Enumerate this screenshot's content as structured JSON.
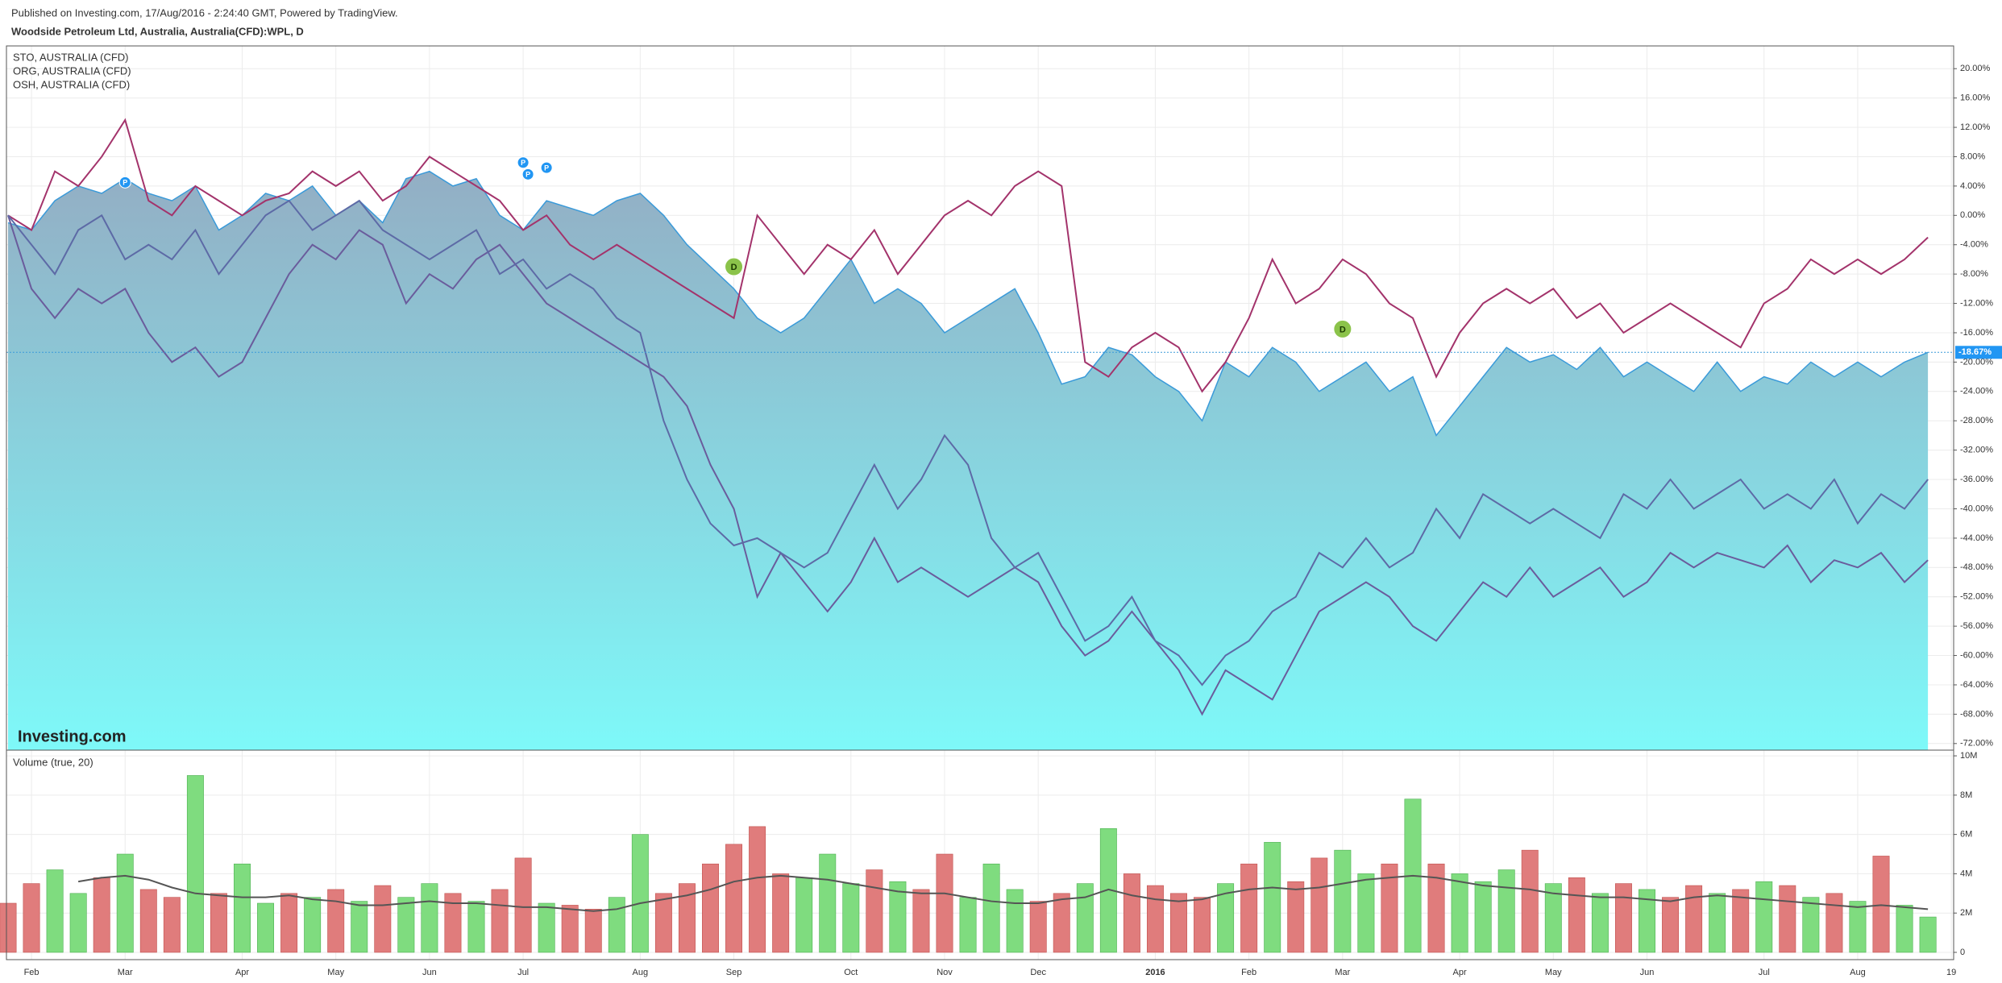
{
  "header": "Published on Investing.com, 17/Aug/2016 - 2:24:40 GMT, Powered by TradingView.",
  "chart_data": [
    {
      "type": "area",
      "title": "Woodside Petroleum Ltd, Australia, Australia(CFD):WPL, D",
      "watermark": "Investing.com",
      "categories": [
        null,
        "Feb",
        null,
        null,
        null,
        "Mar",
        null,
        null,
        null,
        null,
        "Apr",
        null,
        null,
        null,
        "May",
        null,
        null,
        null,
        "Jun",
        null,
        null,
        null,
        "Jul",
        null,
        null,
        null,
        null,
        "Aug",
        null,
        null,
        null,
        "Sep",
        null,
        null,
        null,
        null,
        "Oct",
        null,
        null,
        null,
        "Nov",
        null,
        null,
        null,
        "Dec",
        null,
        null,
        null,
        null,
        "2016",
        null,
        null,
        null,
        "Feb",
        null,
        null,
        null,
        "Mar",
        null,
        null,
        null,
        null,
        "Apr",
        null,
        null,
        null,
        "May",
        null,
        null,
        null,
        "Jun",
        null,
        null,
        null,
        null,
        "Jul",
        null,
        null,
        null,
        "Aug",
        null,
        null,
        null,
        "19"
      ],
      "values": [
        -1,
        -2,
        2,
        4,
        3,
        5,
        3,
        2,
        4,
        -2,
        0,
        3,
        2,
        4,
        0,
        2,
        -1,
        5,
        6,
        4,
        5,
        0,
        -2,
        2,
        1,
        0,
        2,
        3,
        0,
        -4,
        -7,
        -10,
        -14,
        -16,
        -14,
        -10,
        -6,
        -12,
        -10,
        -12,
        -16,
        -14,
        -12,
        -10,
        -16,
        -23,
        -22,
        -18,
        -19,
        -22,
        -24,
        -28,
        -20,
        -22,
        -18,
        -20,
        -24,
        -22,
        -20,
        -24,
        -22,
        -30,
        -26,
        -22,
        -18,
        -20,
        -19,
        -21,
        -18,
        -22,
        -20,
        -22,
        -24,
        -20,
        -24,
        -22,
        -23,
        -20,
        -22,
        -20,
        -22,
        -20,
        -18.67,
        null
      ],
      "color": "#3a9ad9",
      "series": [
        {
          "name": "STO, AUSTRALIA (CFD)",
          "color": "#6a5c9c",
          "values": [
            0,
            -10,
            -14,
            -10,
            -12,
            -10,
            -16,
            -20,
            -18,
            -22,
            -20,
            -14,
            -8,
            -4,
            -6,
            -2,
            -4,
            -12,
            -8,
            -10,
            -6,
            -4,
            -8,
            -12,
            -14,
            -16,
            -18,
            -20,
            -22,
            -26,
            -34,
            -40,
            -52,
            -46,
            -50,
            -54,
            -50,
            -44,
            -50,
            -48,
            -50,
            -52,
            -50,
            -48,
            -50,
            -56,
            -60,
            -58,
            -54,
            -58,
            -62,
            -68,
            -62,
            -64,
            -66,
            -60,
            -54,
            -52,
            -50,
            -52,
            -56,
            -58,
            -54,
            -50,
            -52,
            -48,
            -52,
            -50,
            -48,
            -52,
            -50,
            -46,
            -48,
            -46,
            -47,
            -48,
            -45,
            -50,
            -47,
            -48,
            -46,
            -50,
            -47,
            null
          ]
        },
        {
          "name": "ORG, AUSTRALIA (CFD)",
          "color": "#a3336b",
          "values": [
            0,
            -2,
            6,
            4,
            8,
            13,
            2,
            0,
            4,
            2,
            0,
            2,
            3,
            6,
            4,
            6,
            2,
            4,
            8,
            6,
            4,
            2,
            -2,
            0,
            -4,
            -6,
            -4,
            -6,
            -8,
            -10,
            -12,
            -14,
            0,
            -4,
            -8,
            -4,
            -6,
            -2,
            -8,
            -4,
            0,
            2,
            0,
            4,
            6,
            4,
            -20,
            -22,
            -18,
            -16,
            -18,
            -24,
            -20,
            -14,
            -6,
            -12,
            -10,
            -6,
            -8,
            -12,
            -14,
            -22,
            -16,
            -12,
            -10,
            -12,
            -10,
            -14,
            -12,
            -16,
            -14,
            -12,
            -14,
            -16,
            -18,
            -12,
            -10,
            -6,
            -8,
            -6,
            -8,
            -6,
            -3,
            null
          ]
        },
        {
          "name": "OSH, AUSTRALIA (CFD)",
          "color": "#5d6aa6",
          "values": [
            0,
            -4,
            -8,
            -2,
            0,
            -6,
            -4,
            -6,
            -2,
            -8,
            -4,
            0,
            2,
            -2,
            0,
            2,
            -2,
            -4,
            -6,
            -4,
            -2,
            -8,
            -6,
            -10,
            -8,
            -10,
            -14,
            -16,
            -28,
            -36,
            -42,
            -45,
            -44,
            -46,
            -48,
            -46,
            -40,
            -34,
            -40,
            -36,
            -30,
            -34,
            -44,
            -48,
            -46,
            -52,
            -58,
            -56,
            -52,
            -58,
            -60,
            -64,
            -60,
            -58,
            -54,
            -52,
            -46,
            -48,
            -44,
            -48,
            -46,
            -40,
            -44,
            -38,
            -40,
            -42,
            -40,
            -42,
            -44,
            -38,
            -40,
            -36,
            -40,
            -38,
            -36,
            -40,
            -38,
            -40,
            -36,
            -42,
            -38,
            -40,
            -36,
            null
          ]
        }
      ],
      "ylim": [
        -72.9,
        23.1
      ],
      "yticks": [
        {
          "value": 20,
          "label": "20.00%"
        },
        {
          "value": 16,
          "label": "16.00%"
        },
        {
          "value": 12,
          "label": "12.00%"
        },
        {
          "value": 8,
          "label": "8.00%"
        },
        {
          "value": 4,
          "label": "4.00%"
        },
        {
          "value": 0,
          "label": "0.00%"
        },
        {
          "value": -4,
          "label": "-4.00%"
        },
        {
          "value": -8,
          "label": "-8.00%"
        },
        {
          "value": -12,
          "label": "-12.00%"
        },
        {
          "value": -16,
          "label": "-16.00%"
        },
        {
          "value": -20,
          "label": "-20.00%"
        },
        {
          "value": -24,
          "label": "-24.00%"
        },
        {
          "value": -28,
          "label": "-28.00%"
        },
        {
          "value": -32,
          "label": "-32.00%"
        },
        {
          "value": -36,
          "label": "-36.00%"
        },
        {
          "value": -40,
          "label": "-40.00%"
        },
        {
          "value": -44,
          "label": "-44.00%"
        },
        {
          "value": -48,
          "label": "-48.00%"
        },
        {
          "value": -52,
          "label": "-52.00%"
        },
        {
          "value": -56,
          "label": "-56.00%"
        },
        {
          "value": -60,
          "label": "-60.00%"
        },
        {
          "value": -64,
          "label": "-64.00%"
        },
        {
          "value": -68,
          "label": "-68.00%"
        },
        {
          "value": -72,
          "label": "-72.00%"
        }
      ],
      "grid": true,
      "last_value": {
        "value": -18.67,
        "label": "-18.67%"
      },
      "events": [
        {
          "label": "P",
          "index": 5,
          "value": 4.5
        },
        {
          "label": "P",
          "index": 22,
          "value": 7.2
        },
        {
          "label": "P",
          "index": 22,
          "value": 5.6
        },
        {
          "label": "P",
          "index": 23,
          "value": 6.5
        },
        {
          "label": "D",
          "index": 31,
          "value": -7
        },
        {
          "label": "D",
          "index": 57,
          "value": -15.5
        }
      ]
    },
    {
      "type": "bar",
      "title": "Volume (true, 20)",
      "values": [
        2.5,
        3.5,
        4.2,
        3,
        3.8,
        5,
        3.2,
        2.8,
        9,
        3,
        4.5,
        2.5,
        3,
        2.8,
        3.2,
        2.6,
        3.4,
        2.8,
        3.5,
        3,
        2.6,
        3.2,
        4.8,
        2.5,
        2.4,
        2.2,
        2.8,
        6,
        3,
        3.5,
        4.5,
        5.5,
        6.4,
        4,
        3.8,
        5,
        3.5,
        4.2,
        3.6,
        3.2,
        5,
        2.8,
        4.5,
        3.2,
        2.6,
        3,
        3.5,
        6.3,
        4,
        3.4,
        3,
        2.8,
        3.5,
        4.5,
        5.6,
        3.6,
        4.8,
        5.2,
        4,
        4.5,
        7.8,
        4.5,
        4,
        3.6,
        4.2,
        5.2,
        3.5,
        3.8,
        3,
        3.5,
        3.2,
        2.8,
        3.4,
        3,
        3.2,
        3.6,
        3.4,
        2.8,
        3,
        2.6,
        4.9,
        2.4,
        1.8,
        null
      ],
      "ma": [
        null,
        null,
        null,
        3.6,
        3.8,
        3.9,
        3.7,
        3.3,
        3.0,
        2.9,
        2.8,
        2.8,
        2.9,
        2.7,
        2.6,
        2.4,
        2.4,
        2.5,
        2.6,
        2.5,
        2.5,
        2.4,
        2.3,
        2.3,
        2.2,
        2.1,
        2.2,
        2.5,
        2.7,
        2.9,
        3.2,
        3.6,
        3.8,
        3.9,
        3.8,
        3.7,
        3.5,
        3.3,
        3.1,
        3.0,
        3.0,
        2.8,
        2.6,
        2.5,
        2.5,
        2.7,
        2.8,
        3.2,
        2.9,
        2.7,
        2.6,
        2.7,
        3.0,
        3.2,
        3.3,
        3.2,
        3.3,
        3.5,
        3.7,
        3.8,
        3.9,
        3.8,
        3.6,
        3.4,
        3.3,
        3.2,
        3.0,
        2.9,
        2.8,
        2.8,
        2.7,
        2.6,
        2.8,
        2.9,
        2.8,
        2.7,
        2.6,
        2.5,
        2.4,
        2.3,
        2.4,
        2.3,
        2.2,
        null
      ],
      "ma_color": "#555555",
      "up_color": "#7fdc7f",
      "down_color": "#e07c7c",
      "ylim": [
        -0.37,
        10.29
      ],
      "yticks": [
        0,
        {
          "value": 2,
          "label": "2M"
        },
        {
          "value": 4,
          "label": "4M"
        },
        {
          "value": 6,
          "label": "6M"
        },
        {
          "value": 8,
          "label": "8M"
        },
        {
          "value": 10,
          "label": "10M"
        }
      ],
      "grid": true
    }
  ]
}
